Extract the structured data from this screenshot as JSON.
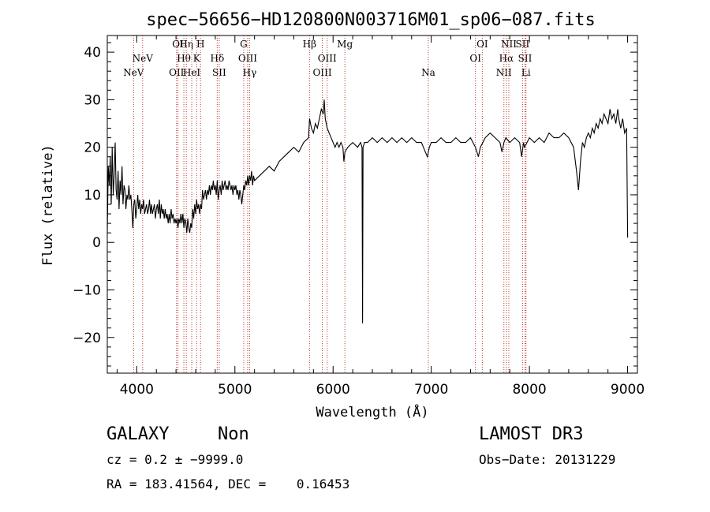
{
  "chart_data": {
    "type": "line",
    "title": "spec−56656−HD120800N003716M01_sp06−087.fits",
    "xlabel": "Wavelength (Å)",
    "ylabel": "Flux (relative)",
    "xlim": [
      3700,
      9100
    ],
    "ylim": [
      -27.5,
      43.5
    ],
    "grid": false,
    "x_ticks": [
      4000,
      5000,
      6000,
      7000,
      8000,
      9000
    ],
    "x_tick_labels": [
      "4000",
      "5000",
      "6000",
      "7000",
      "8000",
      "9000"
    ],
    "y_ticks": [
      -20,
      -10,
      0,
      10,
      20,
      30,
      40
    ],
    "y_tick_labels": [
      "−20",
      "−10",
      "0",
      "10",
      "20",
      "30",
      "40"
    ],
    "series": [
      {
        "color": "#000000",
        "points": [
          [
            3700,
            2
          ],
          [
            3710,
            16
          ],
          [
            3720,
            12
          ],
          [
            3730,
            18
          ],
          [
            3740,
            8
          ],
          [
            3750,
            20
          ],
          [
            3760,
            10
          ],
          [
            3770,
            14
          ],
          [
            3780,
            21
          ],
          [
            3790,
            11
          ],
          [
            3800,
            9
          ],
          [
            3810,
            15
          ],
          [
            3820,
            7
          ],
          [
            3830,
            13
          ],
          [
            3840,
            10
          ],
          [
            3850,
            16
          ],
          [
            3860,
            8
          ],
          [
            3870,
            12
          ],
          [
            3880,
            11
          ],
          [
            3890,
            7
          ],
          [
            3900,
            10
          ],
          [
            3910,
            9
          ],
          [
            3920,
            12
          ],
          [
            3930,
            9
          ],
          [
            3940,
            10
          ],
          [
            3950,
            7
          ],
          [
            3960,
            3
          ],
          [
            3970,
            8
          ],
          [
            3980,
            9
          ],
          [
            3990,
            5
          ],
          [
            4000,
            7
          ],
          [
            4010,
            10
          ],
          [
            4020,
            7
          ],
          [
            4030,
            9
          ],
          [
            4040,
            6
          ],
          [
            4050,
            8
          ],
          [
            4060,
            7
          ],
          [
            4070,
            9
          ],
          [
            4080,
            6
          ],
          [
            4090,
            7
          ],
          [
            4100,
            8
          ],
          [
            4110,
            6
          ],
          [
            4120,
            7
          ],
          [
            4130,
            9
          ],
          [
            4140,
            6
          ],
          [
            4150,
            8
          ],
          [
            4160,
            6
          ],
          [
            4170,
            7
          ],
          [
            4180,
            8
          ],
          [
            4190,
            5
          ],
          [
            4200,
            7
          ],
          [
            4210,
            8
          ],
          [
            4220,
            6
          ],
          [
            4230,
            9
          ],
          [
            4240,
            5
          ],
          [
            4250,
            8
          ],
          [
            4260,
            6
          ],
          [
            4270,
            7
          ],
          [
            4280,
            5
          ],
          [
            4290,
            7
          ],
          [
            4300,
            5
          ],
          [
            4310,
            6
          ],
          [
            4320,
            4
          ],
          [
            4330,
            6
          ],
          [
            4340,
            4
          ],
          [
            4350,
            7
          ],
          [
            4360,
            5
          ],
          [
            4370,
            6
          ],
          [
            4380,
            4
          ],
          [
            4390,
            5
          ],
          [
            4400,
            4
          ],
          [
            4410,
            5
          ],
          [
            4420,
            3
          ],
          [
            4430,
            5
          ],
          [
            4440,
            4
          ],
          [
            4450,
            6
          ],
          [
            4460,
            4
          ],
          [
            4470,
            6
          ],
          [
            4480,
            3
          ],
          [
            4490,
            5
          ],
          [
            4500,
            4
          ],
          [
            4510,
            2
          ],
          [
            4520,
            5
          ],
          [
            4530,
            3
          ],
          [
            4540,
            2
          ],
          [
            4550,
            4
          ],
          [
            4560,
            3
          ],
          [
            4570,
            7
          ],
          [
            4580,
            5
          ],
          [
            4590,
            8
          ],
          [
            4600,
            6
          ],
          [
            4610,
            9
          ],
          [
            4620,
            7
          ],
          [
            4630,
            8
          ],
          [
            4640,
            6
          ],
          [
            4650,
            8
          ],
          [
            4660,
            7
          ],
          [
            4670,
            11
          ],
          [
            4680,
            9
          ],
          [
            4690,
            10
          ],
          [
            4700,
            11
          ],
          [
            4710,
            9
          ],
          [
            4720,
            11
          ],
          [
            4730,
            10
          ],
          [
            4740,
            12
          ],
          [
            4750,
            10
          ],
          [
            4760,
            12
          ],
          [
            4770,
            11
          ],
          [
            4780,
            13
          ],
          [
            4790,
            11
          ],
          [
            4800,
            12
          ],
          [
            4810,
            10
          ],
          [
            4820,
            13
          ],
          [
            4830,
            9
          ],
          [
            4840,
            11
          ],
          [
            4850,
            12
          ],
          [
            4860,
            10
          ],
          [
            4870,
            13
          ],
          [
            4880,
            11
          ],
          [
            4890,
            12
          ],
          [
            4900,
            13
          ],
          [
            4910,
            11
          ],
          [
            4920,
            12
          ],
          [
            4930,
            11
          ],
          [
            4940,
            13
          ],
          [
            4950,
            12
          ],
          [
            4960,
            11
          ],
          [
            4970,
            12
          ],
          [
            4980,
            10
          ],
          [
            4990,
            12
          ],
          [
            5000,
            11
          ],
          [
            5010,
            12
          ],
          [
            5020,
            10
          ],
          [
            5030,
            11
          ],
          [
            5040,
            9
          ],
          [
            5050,
            11
          ],
          [
            5060,
            10
          ],
          [
            5070,
            8
          ],
          [
            5080,
            10
          ],
          [
            5090,
            12
          ],
          [
            5100,
            11
          ],
          [
            5110,
            13
          ],
          [
            5120,
            12
          ],
          [
            5130,
            14
          ],
          [
            5140,
            12
          ],
          [
            5150,
            14
          ],
          [
            5160,
            13
          ],
          [
            5170,
            15
          ],
          [
            5180,
            12
          ],
          [
            5190,
            14
          ],
          [
            5200,
            13
          ],
          [
            5250,
            14
          ],
          [
            5300,
            15
          ],
          [
            5350,
            16
          ],
          [
            5400,
            15
          ],
          [
            5450,
            17
          ],
          [
            5500,
            18
          ],
          [
            5550,
            19
          ],
          [
            5600,
            20
          ],
          [
            5650,
            19
          ],
          [
            5700,
            21
          ],
          [
            5750,
            22
          ],
          [
            5760,
            26
          ],
          [
            5780,
            24
          ],
          [
            5800,
            23
          ],
          [
            5820,
            25
          ],
          [
            5840,
            24
          ],
          [
            5860,
            26
          ],
          [
            5880,
            28
          ],
          [
            5900,
            27
          ],
          [
            5910,
            30
          ],
          [
            5920,
            26
          ],
          [
            5940,
            24
          ],
          [
            5960,
            23
          ],
          [
            5980,
            22
          ],
          [
            6000,
            21
          ],
          [
            6020,
            20
          ],
          [
            6040,
            21
          ],
          [
            6060,
            20
          ],
          [
            6080,
            21
          ],
          [
            6100,
            20
          ],
          [
            6110,
            17
          ],
          [
            6120,
            19
          ],
          [
            6150,
            20
          ],
          [
            6200,
            21
          ],
          [
            6250,
            20
          ],
          [
            6280,
            21
          ],
          [
            6295,
            20
          ],
          [
            6300,
            -17
          ],
          [
            6305,
            20
          ],
          [
            6320,
            21
          ],
          [
            6350,
            21
          ],
          [
            6400,
            22
          ],
          [
            6450,
            21
          ],
          [
            6500,
            22
          ],
          [
            6550,
            21
          ],
          [
            6600,
            22
          ],
          [
            6650,
            21
          ],
          [
            6700,
            22
          ],
          [
            6750,
            21
          ],
          [
            6800,
            22
          ],
          [
            6850,
            21
          ],
          [
            6900,
            21
          ],
          [
            6940,
            19
          ],
          [
            6960,
            18
          ],
          [
            6980,
            20
          ],
          [
            7000,
            21
          ],
          [
            7050,
            21
          ],
          [
            7100,
            22
          ],
          [
            7150,
            21
          ],
          [
            7200,
            21
          ],
          [
            7250,
            22
          ],
          [
            7300,
            21
          ],
          [
            7350,
            21
          ],
          [
            7400,
            22
          ],
          [
            7450,
            20
          ],
          [
            7480,
            18
          ],
          [
            7500,
            20
          ],
          [
            7550,
            22
          ],
          [
            7600,
            23
          ],
          [
            7650,
            22
          ],
          [
            7700,
            21
          ],
          [
            7720,
            19
          ],
          [
            7740,
            21
          ],
          [
            7760,
            22
          ],
          [
            7800,
            21
          ],
          [
            7850,
            22
          ],
          [
            7900,
            21
          ],
          [
            7920,
            18
          ],
          [
            7940,
            21
          ],
          [
            7950,
            20
          ],
          [
            8000,
            22
          ],
          [
            8050,
            21
          ],
          [
            8100,
            22
          ],
          [
            8150,
            21
          ],
          [
            8200,
            23
          ],
          [
            8250,
            22
          ],
          [
            8300,
            22
          ],
          [
            8350,
            23
          ],
          [
            8400,
            22
          ],
          [
            8450,
            20
          ],
          [
            8480,
            15
          ],
          [
            8500,
            11
          ],
          [
            8520,
            17
          ],
          [
            8540,
            21
          ],
          [
            8560,
            20
          ],
          [
            8580,
            22
          ],
          [
            8600,
            23
          ],
          [
            8620,
            22
          ],
          [
            8640,
            24
          ],
          [
            8660,
            23
          ],
          [
            8680,
            25
          ],
          [
            8700,
            24
          ],
          [
            8720,
            26
          ],
          [
            8740,
            25
          ],
          [
            8760,
            27
          ],
          [
            8780,
            26
          ],
          [
            8800,
            25
          ],
          [
            8820,
            28
          ],
          [
            8840,
            26
          ],
          [
            8860,
            27
          ],
          [
            8880,
            25
          ],
          [
            8900,
            28
          ],
          [
            8910,
            26
          ],
          [
            8930,
            24
          ],
          [
            8950,
            26
          ],
          [
            8970,
            23
          ],
          [
            8990,
            24
          ],
          [
            9000,
            1
          ]
        ]
      }
    ],
    "lines": [
      {
        "x": 3968,
        "labels": [
          "NeV"
        ],
        "row": 3
      },
      {
        "x": 4060,
        "labels": [
          "NeV"
        ],
        "row": 2
      },
      {
        "x": 4405,
        "labels": [
          "OII"
        ],
        "row": 3
      },
      {
        "x": 4420,
        "labels": [
          "OI"
        ],
        "row": 0
      },
      {
        "x": 4480,
        "labels": [
          "Hθ"
        ],
        "row": 2
      },
      {
        "x": 4505,
        "labels": [
          "Hη"
        ],
        "row": 0
      },
      {
        "x": 4560,
        "labels": [
          "HeI"
        ],
        "row": 3
      },
      {
        "x": 4610,
        "labels": [
          "K"
        ],
        "row": 2
      },
      {
        "x": 4650,
        "labels": [
          "H"
        ],
        "row": 0
      },
      {
        "x": 4820,
        "labels": [
          "Hδ"
        ],
        "row": 2
      },
      {
        "x": 4840,
        "labels": [
          "SII"
        ],
        "row": 3
      },
      {
        "x": 5090,
        "labels": [
          "G"
        ],
        "row": 0
      },
      {
        "x": 5130,
        "labels": [
          "OIII"
        ],
        "row": 2
      },
      {
        "x": 5150,
        "labels": [
          "Hγ"
        ],
        "row": 3
      },
      {
        "x": 5760,
        "labels": [
          "Hβ"
        ],
        "row": 0
      },
      {
        "x": 5890,
        "labels": [
          "OIII"
        ],
        "row": 3
      },
      {
        "x": 5940,
        "labels": [
          "OIII"
        ],
        "row": 2
      },
      {
        "x": 6120,
        "labels": [
          "Mg"
        ],
        "row": 0
      },
      {
        "x": 6970,
        "labels": [
          "Na"
        ],
        "row": 3
      },
      {
        "x": 7450,
        "labels": [
          "OI"
        ],
        "row": 2
      },
      {
        "x": 7520,
        "labels": [
          "OI"
        ],
        "row": 0
      },
      {
        "x": 7740,
        "labels": [
          "NII"
        ],
        "row": 3
      },
      {
        "x": 7765,
        "labels": [
          "Hα"
        ],
        "row": 2
      },
      {
        "x": 7790,
        "labels": [
          "NII"
        ],
        "row": 0
      },
      {
        "x": 7930,
        "labels": [
          "SII"
        ],
        "row": 0
      },
      {
        "x": 7955,
        "labels": [
          "SII"
        ],
        "row": 2
      },
      {
        "x": 7965,
        "labels": [
          "Li"
        ],
        "row": 3
      }
    ]
  },
  "footer": {
    "class_label": "GALAXY",
    "subclass_label": "Non",
    "survey": "LAMOST DR3",
    "cz_line": "cz = 0.2 ± −9999.0",
    "obs_date": "Obs−Date: 20131229",
    "radec_line": "RA = 183.41564, DEC =    0.16453"
  }
}
